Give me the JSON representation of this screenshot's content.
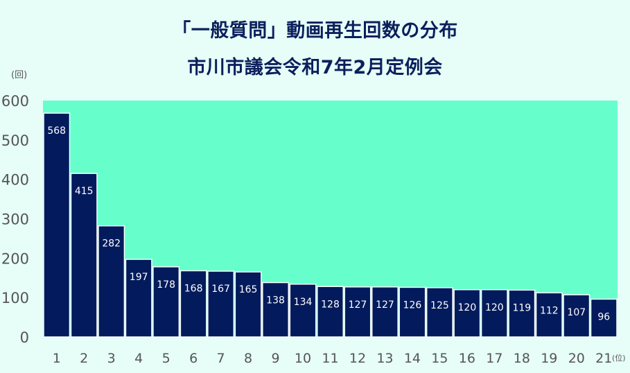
{
  "chart_data": {
    "type": "bar",
    "title": "「一般質問」動画再生回数の分布",
    "subtitle": "市川市議会令和7年2月定例会",
    "ylabel": "(回)",
    "xlabel": "(位)",
    "ylim": [
      0,
      600
    ],
    "yticks": [
      0,
      100,
      200,
      300,
      400,
      500,
      600
    ],
    "categories": [
      "1",
      "2",
      "3",
      "4",
      "5",
      "6",
      "7",
      "8",
      "9",
      "10",
      "11",
      "12",
      "13",
      "14",
      "15",
      "16",
      "17",
      "18",
      "19",
      "20",
      "21"
    ],
    "values": [
      568,
      415,
      282,
      197,
      178,
      168,
      167,
      165,
      138,
      134,
      128,
      127,
      127,
      126,
      125,
      120,
      120,
      119,
      112,
      107,
      96
    ],
    "colors": {
      "background": "#e6fdf8",
      "plot_area": "#66ffcc",
      "bar": "#031b5c",
      "bar_edge": "#ffffff",
      "title": "#0b1f5c",
      "label": "#ffffff",
      "axis_text": "#555555"
    }
  }
}
